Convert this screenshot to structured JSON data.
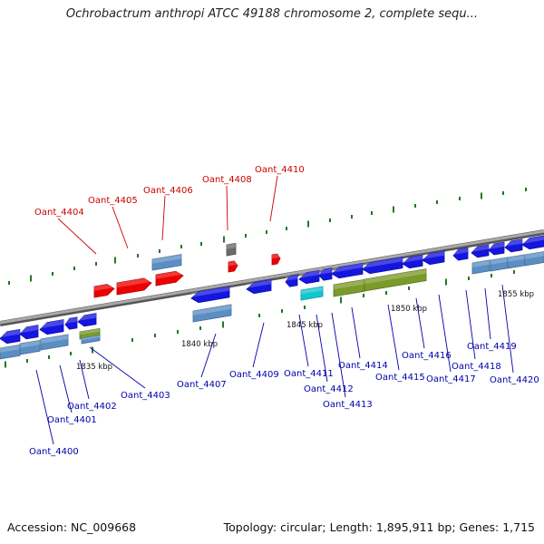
{
  "title": "Ochrobactrum anthropi ATCC 49188 chromosome 2, complete sequ...",
  "footer": {
    "accession": "Accession: NC_009668",
    "topology": "Topology: circular; Length: 1,895,911 bp; Genes: 1,715"
  },
  "colors": {
    "red_label": "#cc0000",
    "blue_label": "#0000aa",
    "strand_line": "#808080",
    "tick": "#1c7a1c",
    "gene_blue": "#1515e0",
    "gene_red": "#ee0000",
    "gene_steel": "#5b8fc4",
    "gene_olive": "#7a9a2a",
    "gene_cyan": "#11c7d0",
    "gene_gray": "#6a6a6a"
  },
  "kbp_labels": [
    "1835 kbp",
    "1840 kbp",
    "1845 kbp",
    "1850 kbp",
    "1855 kbp"
  ],
  "gene_labels": [
    "Oant_4400",
    "Oant_4401",
    "Oant_4402",
    "Oant_4403",
    "Oant_4404",
    "Oant_4405",
    "Oant_4406",
    "Oant_4407",
    "Oant_4408",
    "Oant_4409",
    "Oant_4410",
    "Oant_4411",
    "Oant_4412",
    "Oant_4413",
    "Oant_4414",
    "Oant_4415",
    "Oant_4416",
    "Oant_4417",
    "Oant_4418",
    "Oant_4419",
    "Oant_4420"
  ]
}
